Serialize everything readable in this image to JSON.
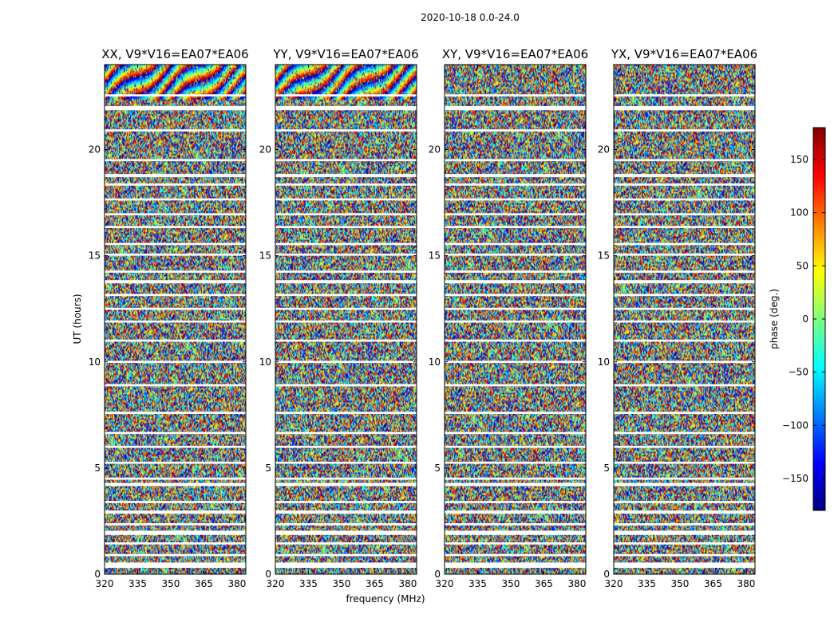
{
  "figure_title": "2020-10-18 0.0-24.0",
  "chart_data": {
    "type": "heatmap",
    "suptitle": "2020-10-18 0.0-24.0",
    "xlabel": "frequency (MHz)",
    "ylabel": "UT (hours)",
    "xlim": [
      320,
      384
    ],
    "ylim": [
      0,
      24
    ],
    "xticks": [
      320,
      335,
      350,
      365,
      380
    ],
    "yticks": [
      0,
      5,
      10,
      15,
      20
    ],
    "colormap": "jet",
    "colorbar": {
      "label": "phase (deg.)",
      "range": [
        -180,
        180
      ],
      "ticks": [
        150,
        100,
        50,
        0,
        -50,
        -100,
        -150
      ],
      "tick_labels": [
        "150",
        "100",
        "50",
        "0",
        "−50",
        "−100",
        "−150"
      ]
    },
    "gap_bands_hours": [
      [
        0.3,
        0.55
      ],
      [
        0.85,
        0.95
      ],
      [
        1.4,
        1.5
      ],
      [
        1.85,
        2.05
      ],
      [
        2.3,
        2.4
      ],
      [
        2.85,
        3.0
      ],
      [
        3.35,
        3.45
      ],
      [
        4.15,
        4.3
      ],
      [
        4.45,
        4.55
      ],
      [
        5.2,
        5.3
      ],
      [
        5.95,
        6.05
      ],
      [
        6.6,
        6.7
      ],
      [
        7.55,
        7.65
      ],
      [
        8.85,
        8.95
      ],
      [
        9.95,
        10.05
      ],
      [
        10.95,
        11.05
      ],
      [
        11.85,
        11.95
      ],
      [
        12.45,
        12.55
      ],
      [
        13.1,
        13.2
      ],
      [
        13.7,
        13.85
      ],
      [
        14.2,
        14.3
      ],
      [
        15.0,
        15.1
      ],
      [
        15.5,
        15.6
      ],
      [
        16.3,
        16.4
      ],
      [
        16.9,
        17.0
      ],
      [
        17.6,
        17.7
      ],
      [
        18.3,
        18.4
      ],
      [
        18.7,
        18.85
      ],
      [
        19.45,
        19.55
      ],
      [
        20.85,
        20.95
      ],
      [
        21.85,
        22.05
      ],
      [
        22.5,
        22.6
      ]
    ],
    "panels": [
      {
        "title": "XX, V9*V16=EA07*EA06",
        "pol": "XX",
        "baseline": "V9*V16=EA07*EA06"
      },
      {
        "title": "YY, V9*V16=EA07*EA06",
        "pol": "YY",
        "baseline": "V9*V16=EA07*EA06"
      },
      {
        "title": "XY, V9*V16=EA07*EA06",
        "pol": "XY",
        "baseline": "V9*V16=EA07*EA06"
      },
      {
        "title": "YX, V9*V16=EA07*EA06",
        "pol": "YX",
        "baseline": "V9*V16=EA07*EA06"
      }
    ]
  }
}
